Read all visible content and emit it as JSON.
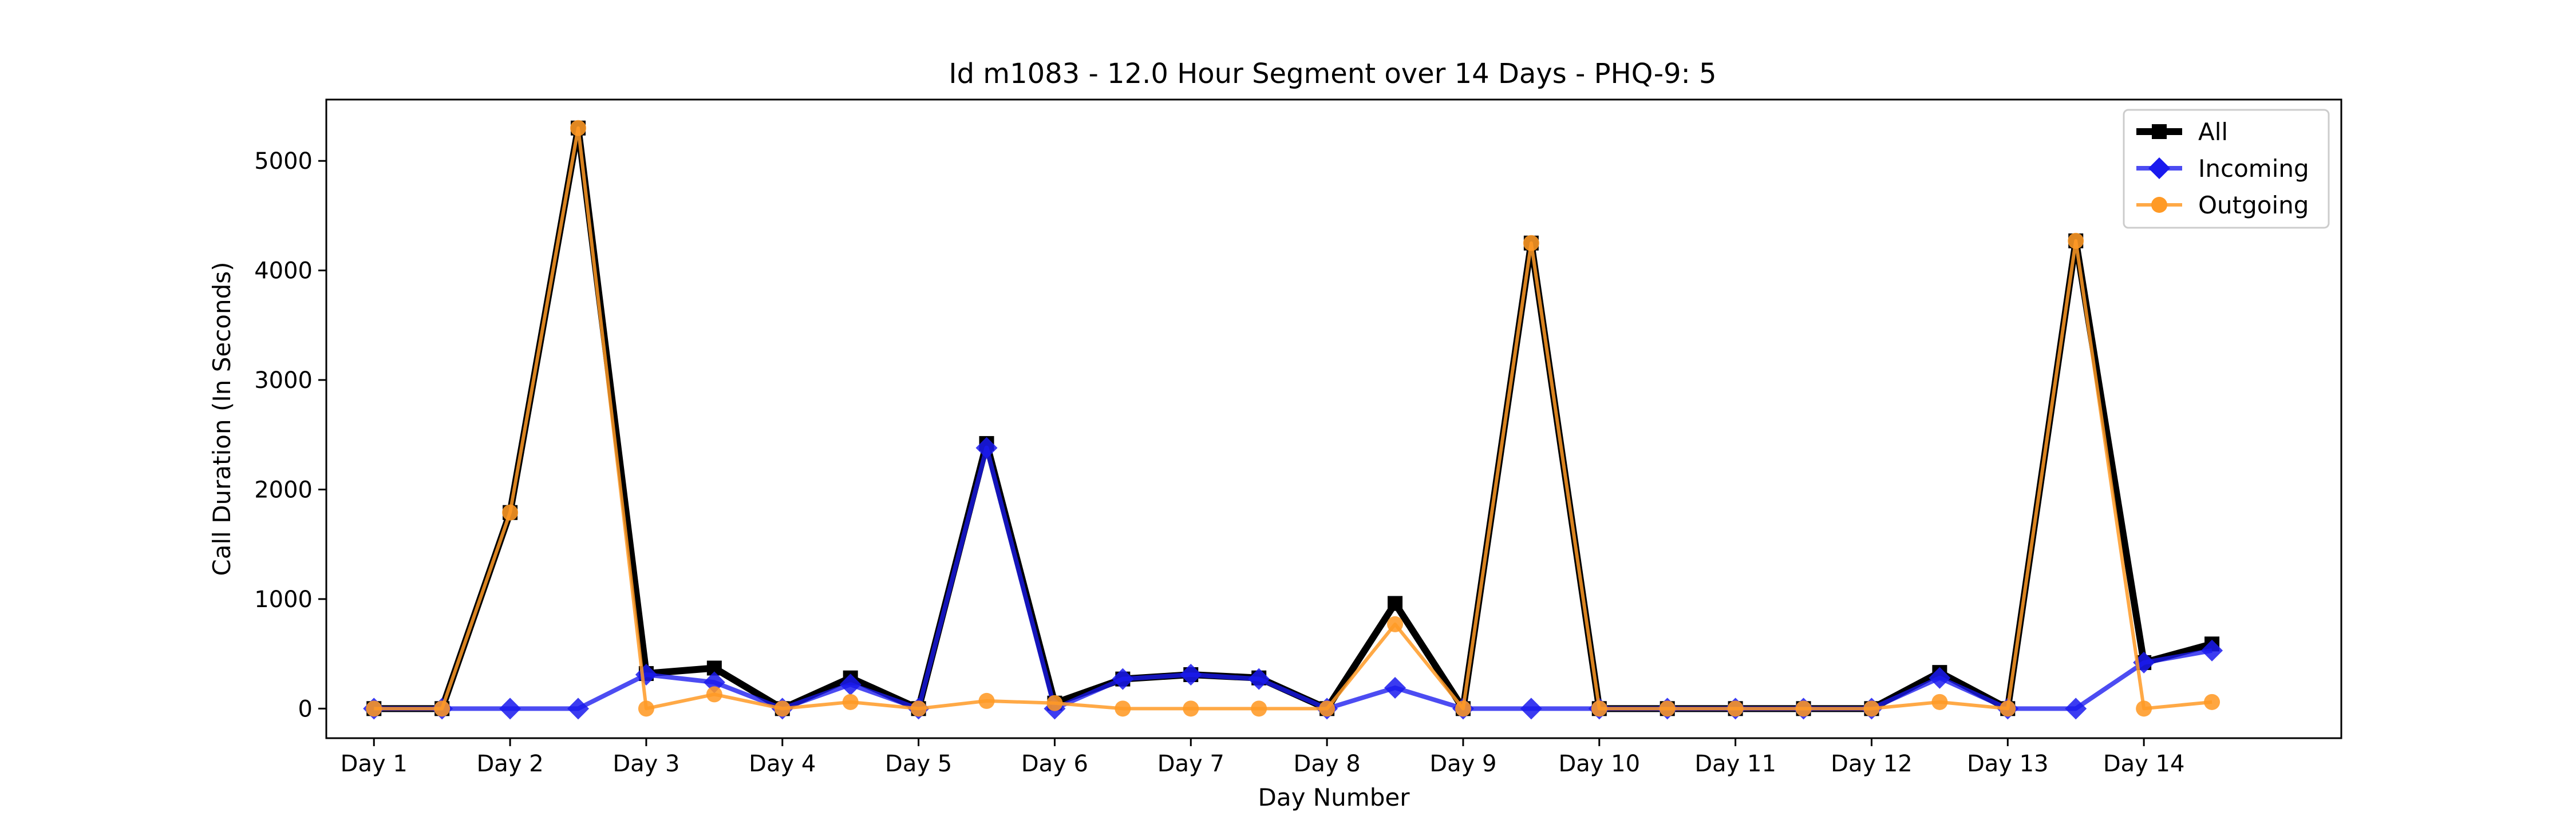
{
  "chart_data": {
    "type": "line",
    "title": "Id m1083 - 12.0 Hour Segment over 14 Days - PHQ-9: 5",
    "xlabel": "Day Number",
    "ylabel": "Call Duration (In Seconds)",
    "x_tick_labels": [
      "Day 1",
      "Day 2",
      "Day 3",
      "Day 4",
      "Day 5",
      "Day 6",
      "Day 7",
      "Day 8",
      "Day 9",
      "Day 10",
      "Day 11",
      "Day 12",
      "Day 13",
      "Day 14"
    ],
    "y_ticks": [
      0,
      1000,
      2000,
      3000,
      4000,
      5000
    ],
    "xlim": [
      -0.7,
      28.9
    ],
    "ylim": [
      -270,
      5560
    ],
    "grid": false,
    "legend_position": "top-right",
    "series": [
      {
        "name": "All",
        "color": "#000000",
        "marker": "square",
        "values": [
          0,
          0,
          1790,
          5300,
          320,
          370,
          0,
          280,
          0,
          2420,
          50,
          270,
          310,
          280,
          0,
          960,
          0,
          4250,
          0,
          0,
          0,
          0,
          0,
          330,
          0,
          4270,
          420,
          590
        ]
      },
      {
        "name": "Incoming",
        "color": "#1a1aee",
        "marker": "diamond",
        "values": [
          0,
          0,
          0,
          0,
          310,
          240,
          0,
          220,
          0,
          2380,
          0,
          270,
          310,
          270,
          0,
          190,
          0,
          0,
          0,
          0,
          0,
          0,
          0,
          280,
          0,
          0,
          420,
          530
        ]
      },
      {
        "name": "Outgoing",
        "color": "#ff9a26",
        "marker": "circle",
        "values": [
          0,
          0,
          1790,
          5300,
          0,
          130,
          0,
          60,
          0,
          70,
          50,
          0,
          0,
          0,
          0,
          770,
          0,
          4250,
          0,
          0,
          0,
          0,
          0,
          60,
          0,
          4270,
          0,
          60
        ]
      }
    ]
  }
}
